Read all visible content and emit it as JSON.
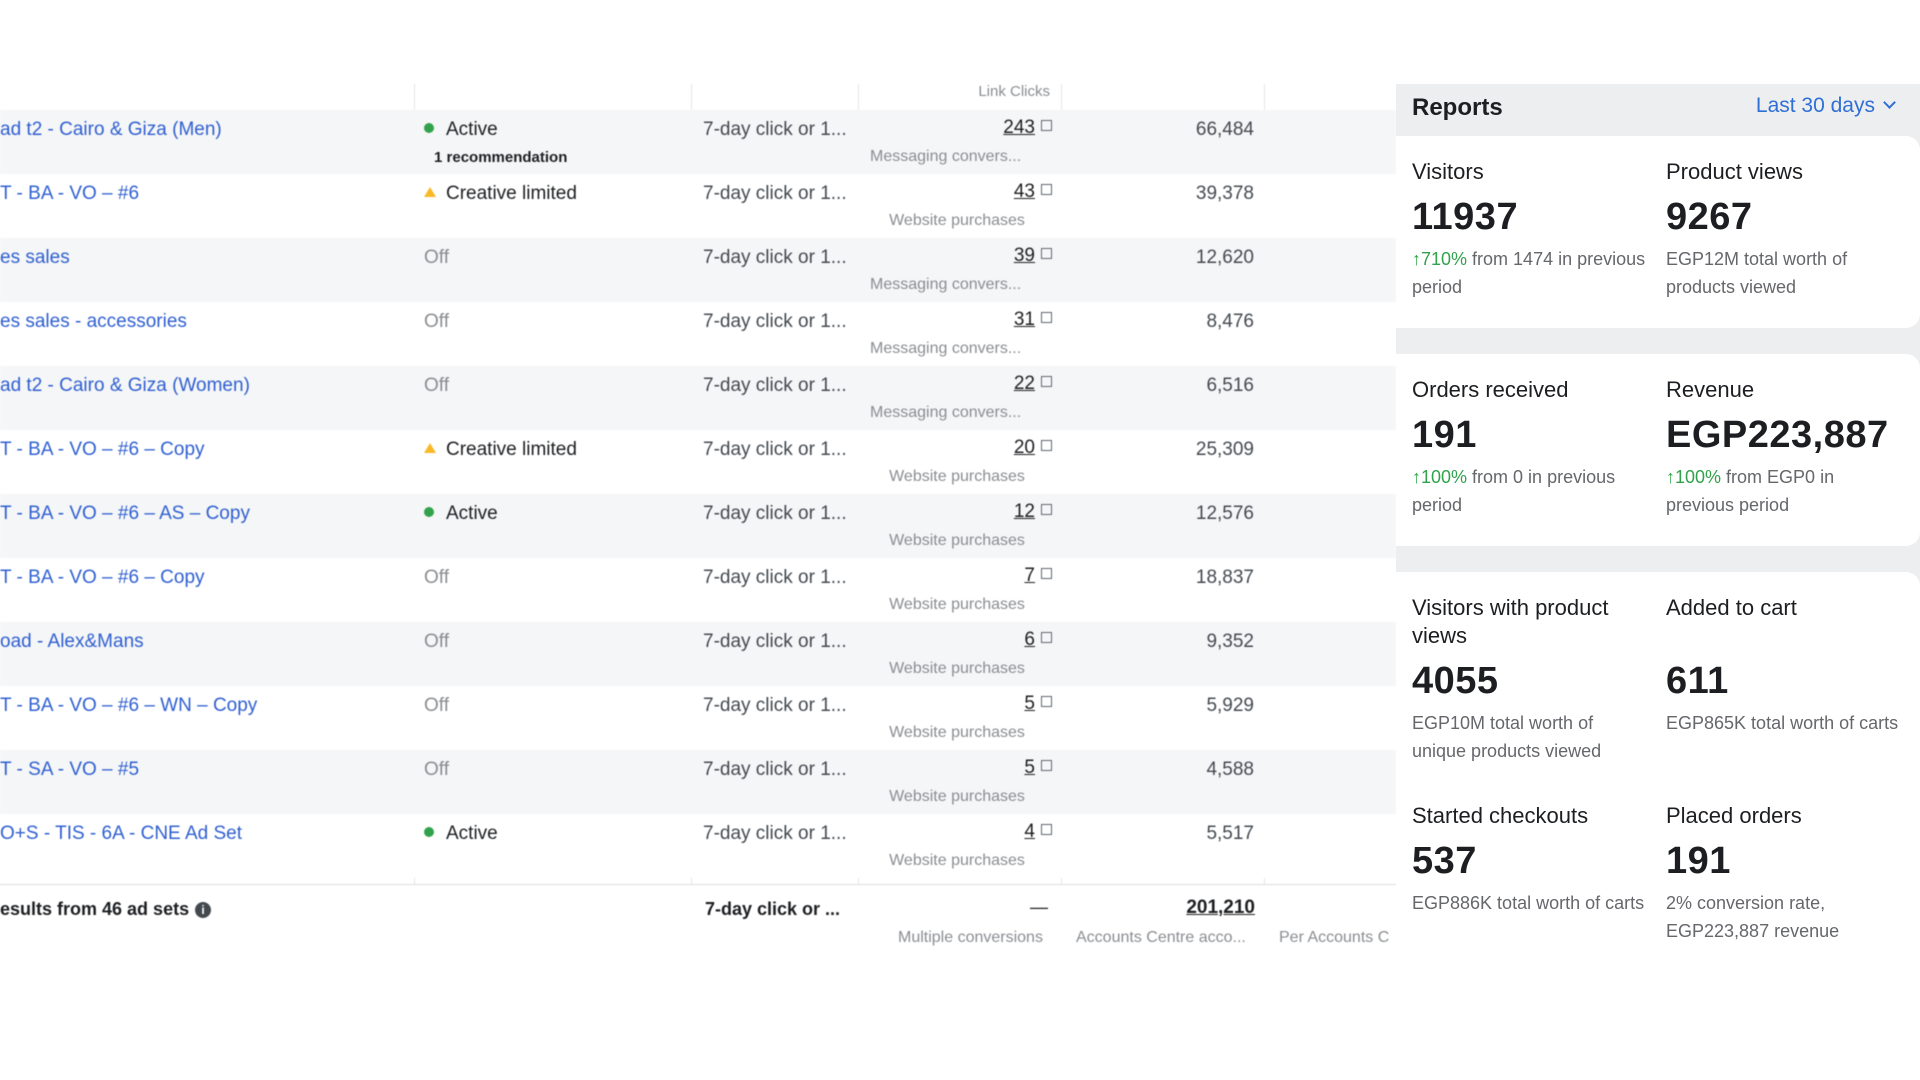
{
  "table": {
    "header": {
      "results_col": "Link Clicks"
    },
    "rows": [
      {
        "name": "ad t2 - Cairo & Giza (Men)",
        "status": "Active",
        "status_type": "active",
        "status_sub": "1 recommendation",
        "attribution": "7-day click or 1...",
        "results": "243",
        "result_type": "Messaging convers...",
        "reach": "66,484"
      },
      {
        "name": "T - BA - VO – #6",
        "status": "Creative limited",
        "status_type": "limited",
        "status_sub": "",
        "attribution": "7-day click or 1...",
        "results": "43",
        "result_type": "Website purchases",
        "reach": "39,378"
      },
      {
        "name": "es sales",
        "status": "Off",
        "status_type": "off",
        "status_sub": "",
        "attribution": "7-day click or 1...",
        "results": "39",
        "result_type": "Messaging convers...",
        "reach": "12,620"
      },
      {
        "name": "es sales - accessories",
        "status": "Off",
        "status_type": "off",
        "status_sub": "",
        "attribution": "7-day click or 1...",
        "results": "31",
        "result_type": "Messaging convers...",
        "reach": "8,476"
      },
      {
        "name": "ad t2 - Cairo & Giza (Women)",
        "status": "Off",
        "status_type": "off",
        "status_sub": "",
        "attribution": "7-day click or 1...",
        "results": "22",
        "result_type": "Messaging convers...",
        "reach": "6,516"
      },
      {
        "name": "T - BA - VO – #6 – Copy",
        "status": "Creative limited",
        "status_type": "limited",
        "status_sub": "",
        "attribution": "7-day click or 1...",
        "results": "20",
        "result_type": "Website purchases",
        "reach": "25,309"
      },
      {
        "name": "T - BA - VO – #6 – AS – Copy",
        "status": "Active",
        "status_type": "active",
        "status_sub": "",
        "attribution": "7-day click or 1...",
        "results": "12",
        "result_type": "Website purchases",
        "reach": "12,576"
      },
      {
        "name": "T - BA - VO – #6 – Copy",
        "status": "Off",
        "status_type": "off",
        "status_sub": "",
        "attribution": "7-day click or 1...",
        "results": "7",
        "result_type": "Website purchases",
        "reach": "18,837"
      },
      {
        "name": "oad - Alex&Mans",
        "status": "Off",
        "status_type": "off",
        "status_sub": "",
        "attribution": "7-day click or 1...",
        "results": "6",
        "result_type": "Website purchases",
        "reach": "9,352"
      },
      {
        "name": "T - BA - VO – #6 – WN – Copy",
        "status": "Off",
        "status_type": "off",
        "status_sub": "",
        "attribution": "7-day click or 1...",
        "results": "5",
        "result_type": "Website purchases",
        "reach": "5,929"
      },
      {
        "name": "T - SA - VO – #5",
        "status": "Off",
        "status_type": "off",
        "status_sub": "",
        "attribution": "7-day click or 1...",
        "results": "5",
        "result_type": "Website purchases",
        "reach": "4,588"
      },
      {
        "name": "O+S - TIS - 6A - CNE Ad Set",
        "status": "Active",
        "status_type": "active",
        "status_sub": "",
        "attribution": "7-day click or 1...",
        "results": "4",
        "result_type": "Website purchases",
        "reach": "5,517"
      }
    ],
    "total": {
      "label": "esults from 46 ad sets",
      "attribution": "7-day click or ...",
      "results": "—",
      "result_type": "Multiple conversions",
      "reach": "201,210",
      "reach_sub": "Accounts Centre acco...",
      "per_sub": "Per Accounts C"
    }
  },
  "reports": {
    "title": "Reports",
    "range": "Last 30 days",
    "metrics": {
      "visitors": {
        "label": "Visitors",
        "value": "11937",
        "note_change": "↑710%",
        "note_rest": " from 1474 in previous period"
      },
      "product_views": {
        "label": "Product views",
        "value": "9267",
        "note_rest": "EGP12M total worth of products viewed"
      },
      "orders_received": {
        "label": "Orders received",
        "value": "191",
        "note_change": "↑100%",
        "note_rest": " from 0 in previous period"
      },
      "revenue": {
        "label": "Revenue",
        "value": "EGP223,887",
        "note_change": "↑100%",
        "note_rest": " from EGP0 in previous period"
      },
      "visitors_product_views": {
        "label": "Visitors with product views",
        "value": "4055",
        "note_rest": "EGP10M total worth of unique products viewed"
      },
      "added_to_cart": {
        "label": "Added to cart",
        "value": "611",
        "note_rest": "EGP865K total worth of carts"
      },
      "started_checkouts": {
        "label": "Started checkouts",
        "value": "537",
        "note_rest": "EGP886K total worth of carts"
      },
      "placed_orders": {
        "label": "Placed orders",
        "value": "191",
        "note_rest": "2% conversion rate, EGP223,887 revenue"
      }
    }
  }
}
